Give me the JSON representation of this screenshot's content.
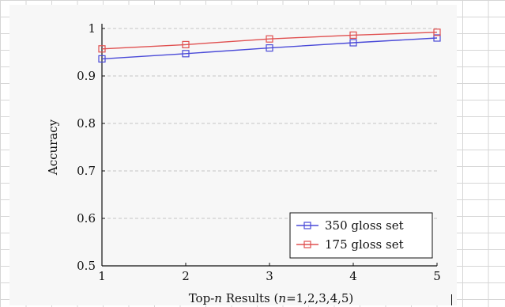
{
  "chart_data": {
    "type": "line",
    "xlabel": "Top-n Results (n=1,2,3,4,5)",
    "xlabel_parts": [
      "Top-",
      "n",
      " Results (",
      "n",
      "=1,2,3,4,5)"
    ],
    "ylabel": "Accuracy",
    "x": [
      1,
      2,
      3,
      4,
      5
    ],
    "xticks": [
      1,
      2,
      3,
      4,
      5
    ],
    "xtick_labels": [
      "1",
      "2",
      "3",
      "4",
      "5"
    ],
    "yticks": [
      0.5,
      0.6,
      0.7,
      0.8,
      0.9,
      1
    ],
    "ytick_labels": [
      "0.5",
      "0.6",
      "0.7",
      "0.8",
      "0.9",
      "1"
    ],
    "xlim": [
      1,
      5
    ],
    "ylim": [
      0.5,
      1.0
    ],
    "grid": "horizontal-dashed",
    "legend_position": "bottom-right",
    "series": [
      {
        "name": "350 gloss set",
        "color": "#4a4ad8",
        "marker": "square",
        "values": [
          0.936,
          0.947,
          0.959,
          0.97,
          0.98
        ]
      },
      {
        "name": "175 gloss set",
        "color": "#e05050",
        "marker": "square",
        "values": [
          0.957,
          0.966,
          0.978,
          0.986,
          0.992
        ]
      }
    ]
  }
}
